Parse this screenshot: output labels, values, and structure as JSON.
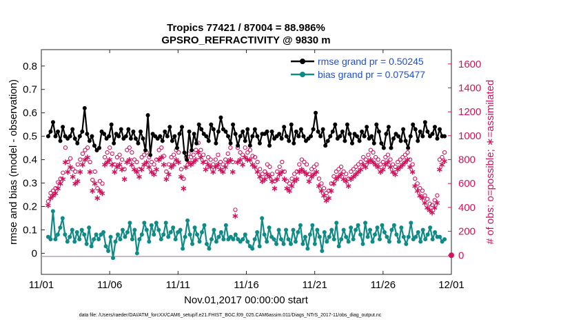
{
  "chart_data": {
    "type": "line",
    "title_line1": "Tropics 77421 / 87004 = 88.986%",
    "title_line2": "GPSRO_REFRACTIVITY @ 9830 m",
    "xlabel": "Nov.01,2017 00:00:00 start",
    "ylabel_left": "rmse and bias (model - observation)",
    "ylabel_right": "# of obs: o=possible; ∗=assimilated",
    "x_tick_labels": [
      "11/01",
      "11/06",
      "11/11",
      "11/16",
      "11/21",
      "11/26",
      "12/01"
    ],
    "xlim_days": [
      0,
      30
    ],
    "ylim_left": [
      -0.09,
      0.87
    ],
    "yticks_left": [
      "0",
      "0.1",
      "0.2",
      "0.3",
      "0.4",
      "0.5",
      "0.6",
      "0.7",
      "0.8"
    ],
    "ylim_right": [
      -160,
      1720
    ],
    "yticks_right": [
      "0",
      "200",
      "400",
      "600",
      "800",
      "1000",
      "1200",
      "1400",
      "1600"
    ],
    "legend": [
      {
        "label": "rmse grand pr = 0.50245",
        "color": "#000000"
      },
      {
        "label": "bias grand pr = 0.075477",
        "color": "#0e8a87"
      }
    ],
    "series": [
      {
        "name": "rmse",
        "axis": "left",
        "color": "#000000",
        "values": [
          0.5,
          0.52,
          0.56,
          0.5,
          0.52,
          0.48,
          0.54,
          0.5,
          0.49,
          0.5,
          0.53,
          0.49,
          0.47,
          0.5,
          0.52,
          0.62,
          0.51,
          0.48,
          0.5,
          0.46,
          0.44,
          0.45,
          0.52,
          0.51,
          0.49,
          0.5,
          0.55,
          0.47,
          0.51,
          0.5,
          0.53,
          0.49,
          0.5,
          0.53,
          0.49,
          0.52,
          0.49,
          0.47,
          0.52,
          0.49,
          0.44,
          0.59,
          0.42,
          0.51,
          0.5,
          0.49,
          0.5,
          0.48,
          0.52,
          0.5,
          0.54,
          0.48,
          0.5,
          0.45,
          0.51,
          0.54,
          0.43,
          0.4,
          0.52,
          0.44,
          0.51,
          0.47,
          0.55,
          0.53,
          0.51,
          0.5,
          0.48,
          0.55,
          0.53,
          0.47,
          0.52,
          0.58,
          0.53,
          0.52,
          0.5,
          0.47,
          0.55,
          0.51,
          0.46,
          0.5,
          0.52,
          0.48,
          0.53,
          0.46,
          0.5,
          0.53,
          0.5,
          0.47,
          0.51,
          0.51,
          0.52,
          0.46,
          0.52,
          0.49,
          0.5,
          0.51,
          0.49,
          0.54,
          0.5,
          0.48,
          0.55,
          0.47,
          0.52,
          0.5,
          0.53,
          0.5,
          0.48,
          0.49,
          0.5,
          0.53,
          0.6,
          0.52,
          0.5,
          0.53,
          0.46,
          0.48,
          0.5,
          0.52,
          0.55,
          0.49,
          0.5,
          0.52,
          0.48,
          0.55,
          0.51,
          0.47,
          0.51,
          0.5,
          0.48,
          0.52,
          0.5,
          0.54,
          0.49,
          0.5,
          0.47,
          0.55,
          0.52,
          0.47,
          0.45,
          0.51,
          0.54,
          0.45,
          0.49,
          0.51,
          0.5,
          0.48,
          0.53,
          0.48,
          0.45,
          0.5,
          0.55,
          0.53,
          0.48,
          0.52,
          0.5,
          0.56,
          0.52,
          0.5,
          0.51,
          0.54,
          0.49,
          0.53,
          0.5,
          0.5
        ]
      },
      {
        "name": "bias",
        "axis": "left",
        "color": "#0e8a87",
        "values": [
          0.07,
          0.06,
          0.18,
          0.06,
          0.08,
          0.11,
          0.15,
          0.08,
          0.05,
          0.07,
          0.1,
          0.05,
          0.09,
          0.06,
          0.1,
          0.08,
          0.04,
          0.11,
          0.03,
          0.06,
          0.08,
          0.06,
          0.08,
          0.09,
          0.03,
          0.01,
          0.07,
          -0.02,
          0.05,
          0.08,
          0.06,
          0.1,
          0.07,
          0.09,
          0.13,
          0.06,
          0.1,
          0.0,
          0.06,
          0.08,
          0.13,
          0.1,
          0.05,
          0.12,
          0.08,
          0.13,
          0.1,
          0.06,
          0.08,
          0.13,
          0.07,
          0.09,
          0.11,
          0.06,
          0.09,
          0.1,
          0.02,
          0.07,
          0.14,
          0.08,
          0.04,
          0.11,
          0.08,
          0.05,
          0.09,
          0.12,
          0.04,
          0.02,
          0.06,
          0.1,
          0.05,
          0.07,
          0.09,
          0.06,
          0.12,
          0.06,
          0.07,
          0.06,
          0.08,
          0.06,
          0.05,
          0.06,
          0.08,
          0.05,
          0.03,
          0.02,
          0.06,
          0.09,
          0.03,
          0.15,
          0.08,
          0.05,
          0.11,
          0.07,
          0.06,
          0.04,
          0.1,
          0.06,
          0.04,
          0.1,
          0.06,
          0.04,
          0.1,
          0.05,
          0.09,
          0.12,
          0.04,
          0.07,
          0.02,
          0.08,
          0.12,
          0.04,
          0.1,
          0.07,
          0.01,
          0.09,
          0.05,
          0.07,
          0.1,
          0.06,
          0.13,
          0.03,
          0.06,
          0.1,
          0.07,
          0.05,
          0.11,
          0.06,
          0.1,
          0.12,
          0.08,
          0.04,
          0.13,
          0.07,
          0.1,
          0.05,
          0.08,
          0.11,
          0.06,
          0.12,
          0.09,
          0.07,
          0.05,
          0.1,
          0.12,
          0.08,
          0.05,
          0.11,
          0.07,
          0.04,
          0.07,
          0.13,
          0.06,
          0.07,
          0.09,
          0.05,
          0.1,
          0.06,
          0.08,
          0.11,
          0.06,
          0.09,
          0.07,
          0.07,
          0.05,
          0.06
        ]
      },
      {
        "name": "possible",
        "axis": "right",
        "marker": "o",
        "color": "#d0135c",
        "values": [
          450,
          520,
          540,
          560,
          610,
          640,
          690,
          900,
          780,
          810,
          720,
          700,
          760,
          800,
          850,
          880,
          900,
          780,
          630,
          700,
          560,
          620,
          600,
          820,
          860,
          900,
          850,
          760,
          820,
          840,
          800,
          720,
          880,
          900,
          860,
          800,
          780,
          720,
          820,
          840,
          860,
          820,
          780,
          760,
          800,
          880,
          900,
          830,
          700,
          760,
          820,
          840,
          880,
          860,
          720,
          640,
          820,
          850,
          820,
          840,
          880,
          940,
          880,
          840,
          780,
          820,
          800,
          760,
          800,
          840,
          780,
          760,
          800,
          850,
          900,
          780,
          380,
          900,
          860,
          840,
          900,
          860,
          880,
          830,
          820,
          780,
          720,
          680,
          700,
          760,
          740,
          680,
          620,
          700,
          740,
          780,
          700,
          620,
          600,
          640,
          680,
          700,
          760,
          800,
          780,
          760,
          680,
          720,
          740,
          760,
          640,
          600,
          560,
          520,
          540,
          600,
          660,
          700,
          720,
          740,
          700,
          680,
          640,
          700,
          720,
          740,
          760,
          780,
          820,
          800,
          840,
          880,
          860,
          820,
          800,
          760,
          780,
          820,
          840,
          800,
          760,
          740,
          780,
          800,
          820,
          840,
          860,
          800,
          760,
          640,
          600,
          560,
          540,
          500,
          470,
          430,
          420,
          460,
          500,
          800,
          820,
          860
        ]
      },
      {
        "name": "assimilated",
        "axis": "right",
        "marker": "*",
        "color": "#d0135c",
        "values": [
          420,
          480,
          500,
          520,
          560,
          600,
          640,
          780,
          700,
          740,
          660,
          600,
          620,
          700,
          760,
          800,
          820,
          700,
          540,
          600,
          480,
          540,
          520,
          760,
          780,
          800,
          760,
          700,
          740,
          760,
          720,
          640,
          780,
          800,
          760,
          720,
          700,
          660,
          720,
          760,
          780,
          740,
          700,
          680,
          720,
          800,
          820,
          760,
          640,
          680,
          740,
          760,
          800,
          780,
          660,
          560,
          740,
          780,
          760,
          780,
          800,
          860,
          820,
          780,
          720,
          760,
          740,
          700,
          740,
          760,
          720,
          700,
          740,
          780,
          800,
          700,
          330,
          780,
          800,
          760,
          820,
          800,
          800,
          760,
          740,
          700,
          660,
          620,
          640,
          680,
          660,
          620,
          560,
          640,
          680,
          700,
          640,
          560,
          540,
          580,
          620,
          640,
          700,
          720,
          700,
          680,
          620,
          660,
          680,
          700,
          580,
          540,
          500,
          460,
          480,
          540,
          600,
          640,
          660,
          680,
          640,
          620,
          580,
          640,
          660,
          680,
          700,
          720,
          760,
          740,
          780,
          800,
          780,
          760,
          740,
          700,
          720,
          760,
          780,
          740,
          700,
          680,
          720,
          740,
          760,
          780,
          800,
          740,
          700,
          580,
          540,
          500,
          480,
          440,
          400,
          380,
          360,
          400,
          440,
          720,
          760,
          790
        ]
      }
    ]
  },
  "footer_text": "data file: /Users/raeder/DAI/ATM_forcXX/CAM6_setup/f.e21.FHIST_BGC.f09_025.CAM6assim.011/Diags_NTrS_2017-11/obs_diag_output.nc"
}
